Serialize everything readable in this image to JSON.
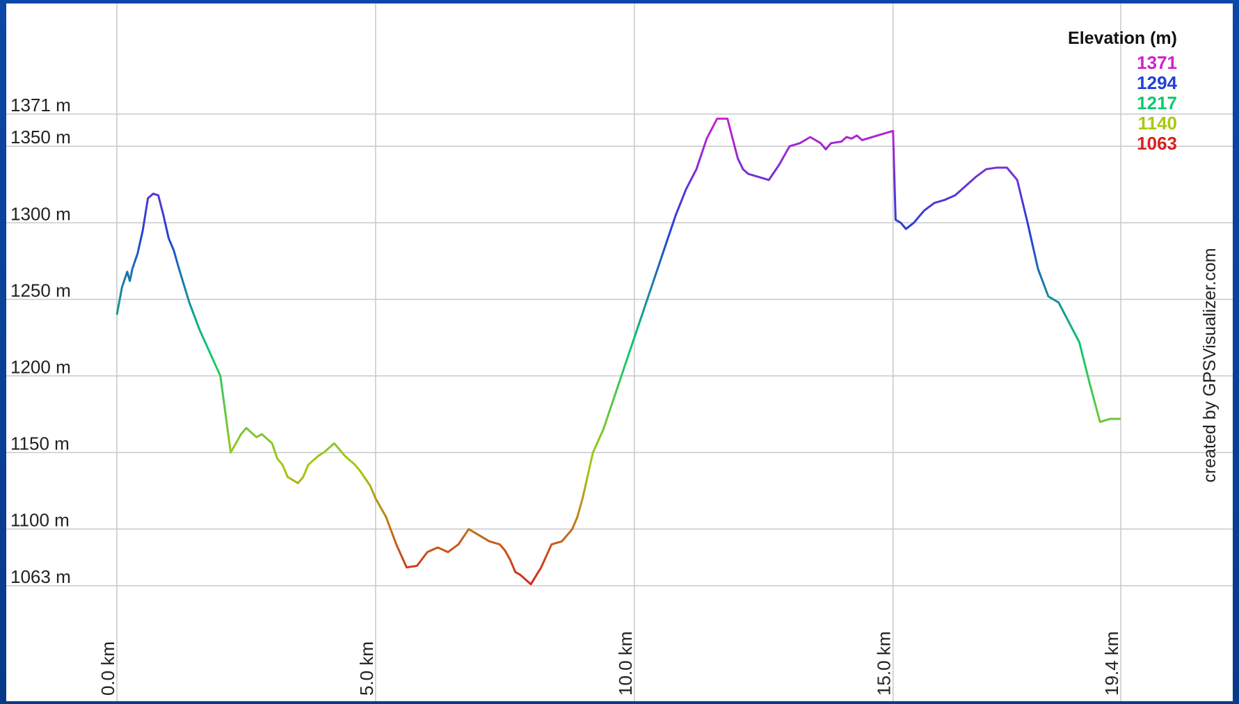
{
  "chart_data": {
    "type": "line",
    "xlabel": "",
    "ylabel": "",
    "x_unit": "km",
    "y_unit": "m",
    "xlim": [
      0.0,
      19.4
    ],
    "ylim": [
      1063,
      1371
    ],
    "grid": true,
    "x_ticks": [
      0.0,
      5.0,
      10.0,
      15.0,
      19.4
    ],
    "x_tick_labels": [
      "0.0 km",
      "5.0 km",
      "10.0 km",
      "15.0 km",
      "19.4 km"
    ],
    "y_ticks": [
      1371,
      1350,
      1300,
      1250,
      1200,
      1150,
      1100,
      1063
    ],
    "y_tick_labels": [
      "1371 m",
      "1350 m",
      "1300 m",
      "1250 m",
      "1200 m",
      "1150 m",
      "1100 m",
      "1063 m"
    ],
    "legend": {
      "title": "Elevation (m)",
      "placement": "top-right",
      "items": [
        {
          "label": "1371",
          "color": "#d020d0"
        },
        {
          "label": "1294",
          "color": "#2040d8"
        },
        {
          "label": "1217",
          "color": "#10c870"
        },
        {
          "label": "1140",
          "color": "#a8c810"
        },
        {
          "label": "1063",
          "color": "#d82020"
        }
      ]
    },
    "credit": "created by GPSVisualizer.com",
    "series": [
      {
        "x": [
          0.0,
          0.1,
          0.2,
          0.25,
          0.3,
          0.4,
          0.5,
          0.6,
          0.7,
          0.8,
          0.9,
          1.0,
          1.1,
          1.2,
          1.4,
          1.6,
          1.8,
          2.0,
          2.2,
          2.4,
          2.5,
          2.6,
          2.7,
          2.8,
          3.0,
          3.1,
          3.2,
          3.3,
          3.5,
          3.6,
          3.7,
          3.8,
          3.9,
          4.0,
          4.2,
          4.4,
          4.5,
          4.6,
          4.7,
          4.9,
          5.0,
          5.2,
          5.4,
          5.6,
          5.8,
          6.0,
          6.2,
          6.4,
          6.6,
          6.8,
          7.0,
          7.2,
          7.4,
          7.5,
          7.6,
          7.7,
          7.8,
          8.0,
          8.2,
          8.4,
          8.6,
          8.8,
          8.9,
          9.0,
          9.1,
          9.2,
          9.4,
          9.6,
          9.8,
          10.0,
          10.2,
          10.4,
          10.6,
          10.8,
          11.0,
          11.2,
          11.4,
          11.6,
          11.8,
          11.9,
          12.0,
          12.1,
          12.2,
          12.4,
          12.6,
          12.8,
          13.0,
          13.2,
          13.4,
          13.6,
          13.7,
          13.8,
          14.0,
          14.1,
          14.2,
          14.3,
          14.4,
          14.6,
          14.8,
          15.0,
          15.05,
          15.15,
          15.25,
          15.4,
          15.6,
          15.8,
          16.0,
          16.2,
          16.4,
          16.6,
          16.8,
          17.0,
          17.2,
          17.4,
          17.6,
          17.8,
          18.0,
          18.2,
          18.4,
          18.6,
          18.8,
          19.0,
          19.2,
          19.4
        ],
        "y": [
          1240,
          1258,
          1268,
          1262,
          1270,
          1280,
          1295,
          1316,
          1319,
          1318,
          1305,
          1290,
          1282,
          1270,
          1248,
          1230,
          1215,
          1200,
          1150,
          1162,
          1166,
          1163,
          1160,
          1162,
          1156,
          1146,
          1142,
          1134,
          1130,
          1134,
          1142,
          1145,
          1148,
          1150,
          1156,
          1148,
          1145,
          1142,
          1138,
          1128,
          1120,
          1108,
          1090,
          1075,
          1076,
          1085,
          1088,
          1085,
          1090,
          1100,
          1096,
          1092,
          1090,
          1086,
          1080,
          1072,
          1070,
          1064,
          1075,
          1090,
          1092,
          1100,
          1108,
          1120,
          1135,
          1150,
          1165,
          1185,
          1205,
          1225,
          1245,
          1265,
          1285,
          1305,
          1322,
          1335,
          1355,
          1368,
          1368,
          1355,
          1342,
          1335,
          1332,
          1330,
          1328,
          1338,
          1350,
          1352,
          1356,
          1352,
          1348,
          1352,
          1353,
          1356,
          1355,
          1357,
          1354,
          1356,
          1358,
          1360,
          1302,
          1300,
          1296,
          1300,
          1308,
          1313,
          1315,
          1318,
          1324,
          1330,
          1335,
          1336,
          1336,
          1328,
          1300,
          1270,
          1252,
          1248,
          1235,
          1222,
          1195,
          1170,
          1172,
          1172
        ]
      }
    ]
  }
}
